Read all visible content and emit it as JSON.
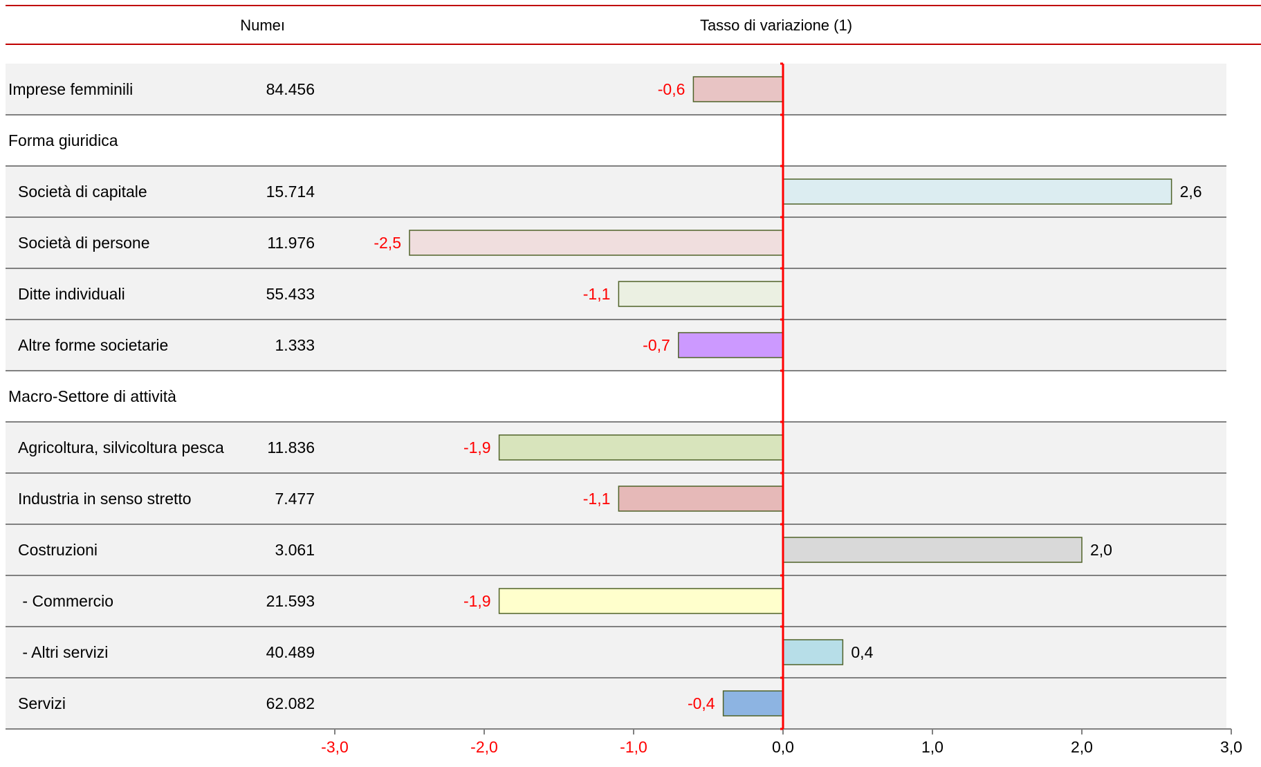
{
  "chart_data": {
    "type": "bar",
    "orientation": "horizontal",
    "header": {
      "number_col": "Numeı",
      "change_col": "Tasso di variazione (1)"
    },
    "rows": [
      {
        "label": "Imprese femminili",
        "number": "84.456",
        "value": -0.6,
        "value_label": "-0,6",
        "color": "#e8c4c4",
        "band": true,
        "indent": false
      },
      {
        "label": "Forma giuridica",
        "band": false,
        "indent": false
      },
      {
        "label": "Società di capitale",
        "number": "15.714",
        "value": 2.6,
        "value_label": "2,6",
        "color": "#dcedf1",
        "band": true,
        "indent": true
      },
      {
        "label": "Società di persone",
        "number": "11.976",
        "value": -2.5,
        "value_label": "-2,5",
        "color": "#f0dede",
        "band": true,
        "indent": true
      },
      {
        "label": "Ditte individuali",
        "number": "55.433",
        "value": -1.1,
        "value_label": "-1,1",
        "color": "#ebf0e2",
        "band": true,
        "indent": true
      },
      {
        "label": "Altre forme societarie",
        "number": "1.333",
        "value": -0.7,
        "value_label": "-0,7",
        "color": "#cc99ff",
        "band": true,
        "indent": true
      },
      {
        "label": "Macro-Settore di attività",
        "band": false,
        "indent": false
      },
      {
        "label": "Agricoltura, silvicoltura pesca",
        "number": "11.836",
        "value": -1.9,
        "value_label": "-1,9",
        "color": "#d8e4bc",
        "band": true,
        "indent": true
      },
      {
        "label": "Industria in senso stretto",
        "number": "7.477",
        "value": -1.1,
        "value_label": "-1,1",
        "color": "#e6b9b8",
        "band": true,
        "indent": true
      },
      {
        "label": "Costruzioni",
        "number": "3.061",
        "value": 2.0,
        "value_label": "2,0",
        "color": "#d9d9d9",
        "band": true,
        "indent": true
      },
      {
        "label": " - Commercio",
        "number": "21.593",
        "value": -1.9,
        "value_label": "-1,9",
        "color": "#ffffcc",
        "band": true,
        "indent": true
      },
      {
        "label": " - Altri servizi",
        "number": "40.489",
        "value": 0.4,
        "value_label": "0,4",
        "color": "#b7dee8",
        "band": true,
        "indent": true
      },
      {
        "label": "Servizi",
        "number": "62.082",
        "value": -0.4,
        "value_label": "-0,4",
        "color": "#8db4e2",
        "band": true,
        "indent": true
      }
    ],
    "xlim": [
      -3.0,
      3.0
    ],
    "ticks": [
      -3.0,
      -2.0,
      -1.0,
      0.0,
      1.0,
      2.0,
      3.0
    ],
    "tick_labels": [
      "-3,0",
      "-2,0",
      "-1,0",
      "0,0",
      "1,0",
      "2,0",
      "3,0"
    ],
    "colors": {
      "rule": "#c00000",
      "zero_line": "#ff0000",
      "negative_text": "#ff0000",
      "positive_text": "#000000",
      "band": "#f2f2f2",
      "separator": "#808080",
      "bar_border": "#4f6228"
    }
  }
}
